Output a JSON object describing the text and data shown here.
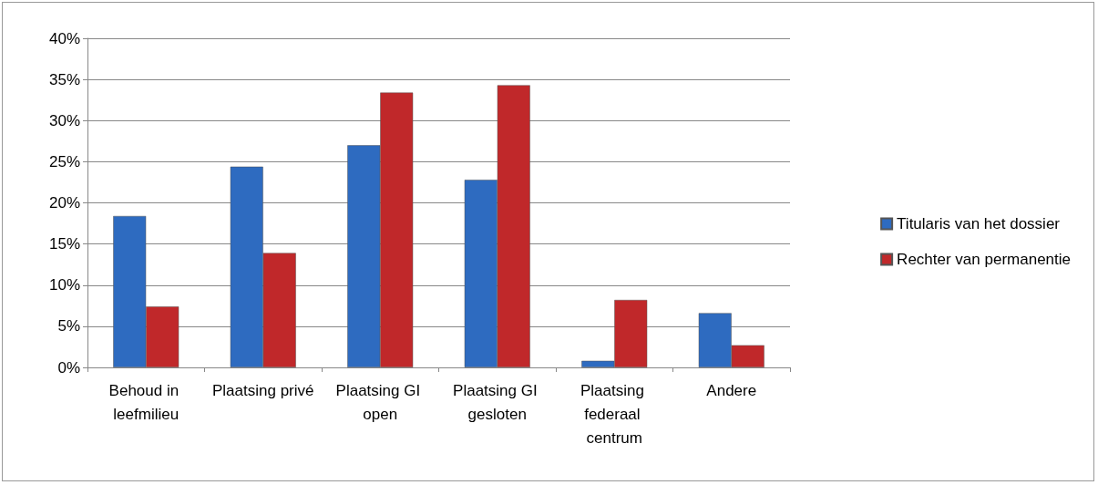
{
  "chart_data": {
    "type": "bar",
    "categories": [
      "Behoud in leefmilieu",
      "Plaatsing privé",
      "Plaatsing GI open",
      "Plaatsing GI gesloten",
      "Plaatsing federaal centrum",
      "Andere"
    ],
    "series": [
      {
        "name": "Titularis van het dossier",
        "color": "#2e6bc0",
        "values": [
          18.4,
          24.4,
          27.0,
          22.8,
          0.8,
          6.6
        ]
      },
      {
        "name": "Rechter van permanentie",
        "color": "#c0282a",
        "values": [
          7.4,
          13.9,
          33.4,
          34.3,
          8.2,
          2.7
        ]
      }
    ],
    "ylim": [
      0,
      40
    ],
    "yticks": [
      {
        "value": 0,
        "label": "0%"
      },
      {
        "value": 5,
        "label": "5%"
      },
      {
        "value": 10,
        "label": "10%"
      },
      {
        "value": 15,
        "label": "15%"
      },
      {
        "value": 20,
        "label": "20%"
      },
      {
        "value": 25,
        "label": "25%"
      },
      {
        "value": 30,
        "label": "30%"
      },
      {
        "value": 35,
        "label": "35%"
      },
      {
        "value": 40,
        "label": "40%"
      }
    ],
    "grid": "y",
    "legend": "right"
  }
}
